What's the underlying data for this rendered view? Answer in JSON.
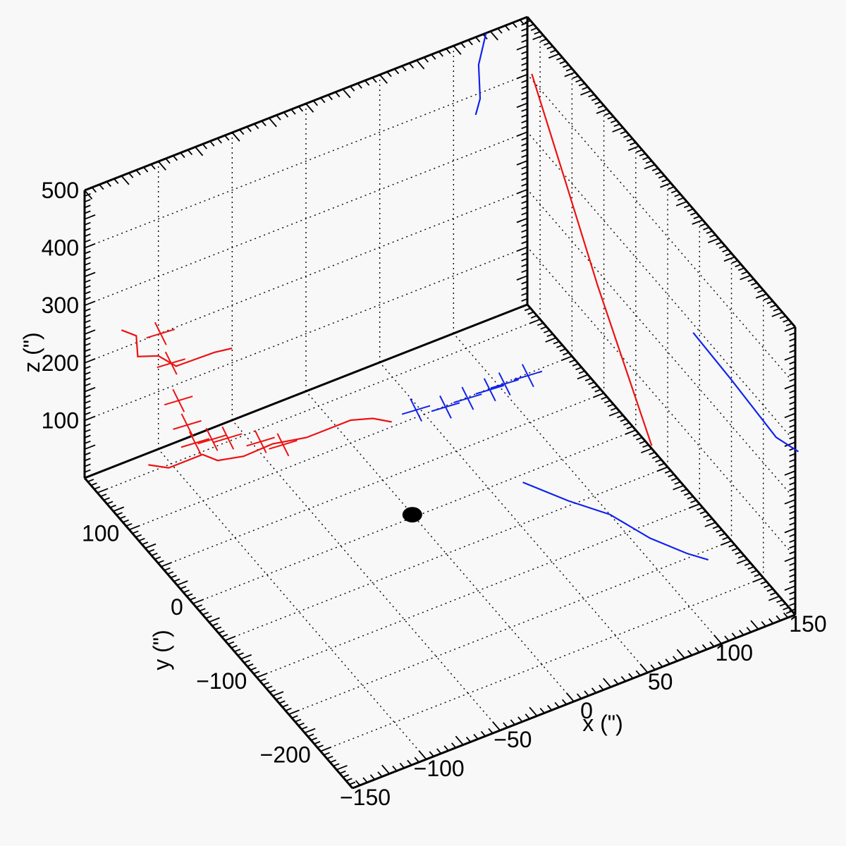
{
  "chart_data": {
    "type": "scatter",
    "projection": "3d-box",
    "axes": {
      "x": {
        "label": "x (\")",
        "range": [
          -150,
          150
        ],
        "ticks": [
          {
            "v": -150,
            "t": "−150"
          },
          {
            "v": -100,
            "t": "−100"
          },
          {
            "v": -50,
            "t": "−50"
          },
          {
            "v": 0,
            "t": "0"
          },
          {
            "v": 50,
            "t": "50"
          },
          {
            "v": 100,
            "t": "100"
          },
          {
            "v": 150,
            "t": "150"
          }
        ]
      },
      "y": {
        "label": "y (\")",
        "range": [
          -250,
          170
        ],
        "ticks": [
          {
            "v": -200,
            "t": "−200"
          },
          {
            "v": -100,
            "t": "−100"
          },
          {
            "v": 0,
            "t": "0"
          },
          {
            "v": 100,
            "t": "100"
          }
        ]
      },
      "z": {
        "label": "z (\")",
        "range": [
          0,
          500
        ],
        "ticks": [
          {
            "v": 100,
            "t": "100"
          },
          {
            "v": 200,
            "t": "200"
          },
          {
            "v": 300,
            "t": "300"
          },
          {
            "v": 400,
            "t": "400"
          },
          {
            "v": 500,
            "t": "500"
          }
        ]
      }
    },
    "grid": true,
    "colors": {
      "red": "#ee1111",
      "blue": "#1122ee",
      "axis": "#000000",
      "background": "#f8f8f8"
    },
    "series": [
      {
        "color": "red",
        "marker": "+",
        "points": [
          {
            "x": -105,
            "y": 155,
            "z": 225
          },
          {
            "x": -100,
            "y": 150,
            "z": 175
          },
          {
            "x": -95,
            "y": 150,
            "z": 105
          },
          {
            "x": -90,
            "y": 148,
            "z": 60
          },
          {
            "x": -85,
            "y": 147,
            "z": 25
          },
          {
            "x": -75,
            "y": 144,
            "z": 25
          },
          {
            "x": -65,
            "y": 142,
            "z": 20
          },
          {
            "x": -45,
            "y": 137,
            "z": 0
          },
          {
            "x": -35,
            "y": 125,
            "z": 0
          }
        ]
      },
      {
        "color": "blue",
        "marker": "+",
        "points": [
          {
            "x": 40,
            "y": 90,
            "z": 30
          },
          {
            "x": 60,
            "y": 90,
            "z": 15
          },
          {
            "x": 75,
            "y": 90,
            "z": 15
          },
          {
            "x": 90,
            "y": 90,
            "z": 15
          },
          {
            "x": 100,
            "y": 90,
            "z": 15
          },
          {
            "x": 118,
            "y": 95,
            "z": 5
          }
        ]
      },
      {
        "color": "red",
        "marker": "none",
        "projection_plane": "xz at y max",
        "points": [
          {
            "x": -125,
            "z": 232
          },
          {
            "x": -115,
            "z": 212
          },
          {
            "x": -114,
            "z": 175
          },
          {
            "x": -100,
            "z": 162
          },
          {
            "x": -88,
            "z": 132
          },
          {
            "x": -62,
            "z": 130
          },
          {
            "x": -50,
            "z": 125
          }
        ]
      },
      {
        "color": "red",
        "marker": "none",
        "projection_plane": "xy at z 0",
        "points": [
          {
            "x": -112,
            "y": 158
          },
          {
            "x": -103,
            "y": 147
          },
          {
            "x": -80,
            "y": 147
          },
          {
            "x": -75,
            "y": 135
          },
          {
            "x": -60,
            "y": 129
          },
          {
            "x": -40,
            "y": 130
          },
          {
            "x": -20,
            "y": 123
          },
          {
            "x": 10,
            "y": 123
          },
          {
            "x": 22,
            "y": 116
          },
          {
            "x": 30,
            "y": 105
          }
        ]
      },
      {
        "color": "red",
        "marker": "none",
        "projection_plane": "yz at x max",
        "points": [
          {
            "y": 163,
            "z": 410
          },
          {
            "y": 110,
            "z": 290
          },
          {
            "y": 60,
            "z": 175
          },
          {
            "y": -25,
            "z": 5
          }
        ]
      },
      {
        "color": "blue",
        "marker": "none",
        "projection_plane": "xz at y max",
        "points": [
          {
            "x": 115,
            "z": 365
          },
          {
            "x": 118,
            "z": 390
          },
          {
            "x": 117,
            "z": 450
          },
          {
            "x": 122,
            "z": 500
          }
        ]
      },
      {
        "color": "blue",
        "marker": "none",
        "projection_plane": "xy at z 0",
        "points": [
          {
            "x": 70,
            "y": -8
          },
          {
            "x": 85,
            "y": -45
          },
          {
            "x": 100,
            "y": -75
          },
          {
            "x": 110,
            "y": -115
          },
          {
            "x": 122,
            "y": -145
          },
          {
            "x": 130,
            "y": -160
          }
        ]
      },
      {
        "color": "blue",
        "marker": "none",
        "projection_plane": "yz at x max",
        "points": [
          {
            "y": -90,
            "z": 285
          },
          {
            "y": -150,
            "z": 280
          },
          {
            "y": -220,
            "z": 270
          },
          {
            "y": -255,
            "z": 290
          }
        ]
      }
    ],
    "origin_marker": {
      "x": 0,
      "y": 0,
      "z": 0,
      "color": "#000000"
    }
  }
}
